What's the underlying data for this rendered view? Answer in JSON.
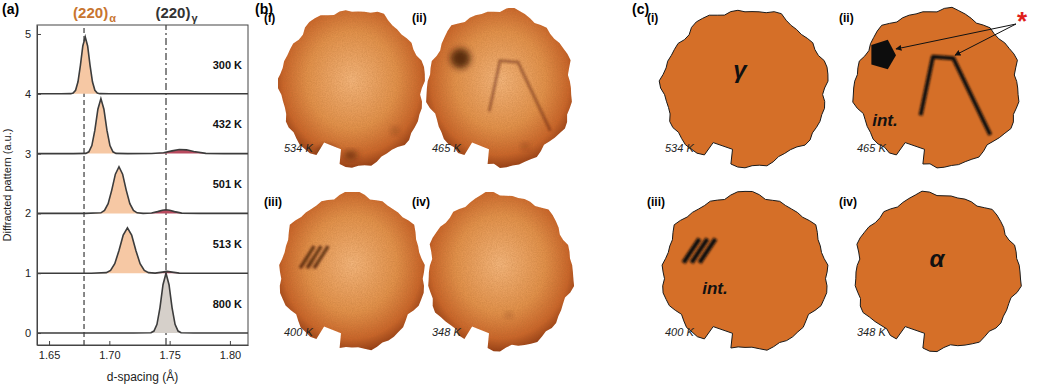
{
  "chart_data": {
    "type": "line",
    "panel_label": "(a)",
    "x_label": "d-spacing (Å)",
    "y_label": "Diffracted pattern (a.u.)",
    "xlim": [
      1.64,
      1.815
    ],
    "xticks": [
      1.65,
      {
        "value": 1.7,
        "label": "1.70"
      },
      1.75,
      {
        "value": 1.8,
        "label": "1.80"
      }
    ],
    "ylim": [
      -0.2,
      5.15
    ],
    "yticks": [
      0,
      1,
      2,
      3,
      4,
      5
    ],
    "reference_lines": [
      {
        "label": "(220)",
        "subscript": "α",
        "value": 1.679,
        "color": "#c8752f",
        "line_style": "dashed"
      },
      {
        "label": "(220)",
        "subscript": "γ",
        "value": 1.747,
        "color": "#333333",
        "line_style": "dashdot"
      }
    ],
    "series": [
      {
        "name": "300 K",
        "color": "#3c3c3c",
        "colors": [
          "#f6c8a4"
        ],
        "offset": 4,
        "x": [
          1.64,
          1.66,
          1.668,
          1.67,
          1.672,
          1.674,
          1.676,
          1.678,
          1.68,
          1.682,
          1.684,
          1.686,
          1.688,
          1.69,
          1.692,
          1.7,
          1.75,
          1.815
        ],
        "values": [
          4,
          4,
          4.002,
          4.012,
          4.059,
          4.2,
          4.475,
          4.799,
          4.95,
          4.799,
          4.475,
          4.2,
          4.059,
          4.012,
          4.002,
          4,
          4,
          4
        ]
      },
      {
        "name": "432 K",
        "color": "#3c3c3c",
        "colors": [
          "#f6c8a4",
          "#b84a5e"
        ],
        "offset": 3,
        "x": [
          1.64,
          1.67,
          1.6805,
          1.683,
          1.6855,
          1.688,
          1.6905,
          1.693,
          1.6955,
          1.698,
          1.7005,
          1.703,
          1.7055,
          1.715,
          1.735,
          1.745,
          1.752,
          1.758,
          1.764,
          1.77,
          1.78,
          1.795,
          1.815
        ],
        "values": [
          3,
          3,
          3.004,
          3.03,
          3.134,
          3.391,
          3.742,
          3.92,
          3.742,
          3.391,
          3.134,
          3.03,
          3.004,
          3,
          3.001,
          3.015,
          3.045,
          3.068,
          3.063,
          3.035,
          3.004,
          3,
          3
        ]
      },
      {
        "name": "501 K",
        "color": "#3c3c3c",
        "colors": [
          "#f6c8a4",
          "#b84a5e"
        ],
        "offset": 2,
        "x": [
          1.64,
          1.68,
          1.693,
          1.696,
          1.699,
          1.702,
          1.705,
          1.708,
          1.711,
          1.714,
          1.717,
          1.72,
          1.723,
          1.728,
          1.735,
          1.74,
          1.744,
          1.747,
          1.75,
          1.754,
          1.76,
          1.775,
          1.815
        ],
        "values": [
          2,
          2,
          2.01,
          2.049,
          2.164,
          2.39,
          2.656,
          2.78,
          2.656,
          2.39,
          2.164,
          2.049,
          2.01,
          2.001,
          2.008,
          2.03,
          2.053,
          2.06,
          2.053,
          2.03,
          2.005,
          2,
          2
        ]
      },
      {
        "name": "513 K",
        "color": "#3c3c3c",
        "colors": [
          "#f6c8a4",
          "#b84a5e"
        ],
        "offset": 1,
        "x": [
          1.64,
          1.685,
          1.6975,
          1.701,
          1.7045,
          1.708,
          1.7115,
          1.715,
          1.7185,
          1.722,
          1.7255,
          1.729,
          1.7325,
          1.738,
          1.744,
          1.748,
          1.752,
          1.758,
          1.775,
          1.815
        ],
        "values": [
          1,
          1,
          1.01,
          1.048,
          1.16,
          1.38,
          1.639,
          1.76,
          1.639,
          1.38,
          1.16,
          1.048,
          1.01,
          1.002,
          1.019,
          1.03,
          1.019,
          1.002,
          1,
          1
        ]
      },
      {
        "name": "800 K",
        "color": "#3c3c3c",
        "colors": [
          "#d6d0ca"
        ],
        "offset": 0,
        "x": [
          1.64,
          1.72,
          1.7345,
          1.737,
          1.7395,
          1.742,
          1.7445,
          1.747,
          1.7495,
          1.752,
          1.7545,
          1.757,
          1.7595,
          1.77,
          1.815
        ],
        "values": [
          0,
          0,
          0.005,
          0.033,
          0.146,
          0.425,
          0.807,
          1,
          0.807,
          0.425,
          0.146,
          0.033,
          0.005,
          0,
          0
        ]
      }
    ]
  },
  "images": {
    "panel_label": "(b)",
    "items": [
      {
        "label": "(i)",
        "temperature": "534 K"
      },
      {
        "label": "(ii)",
        "temperature": "465 K"
      },
      {
        "label": "(iii)",
        "temperature": "400 K"
      },
      {
        "label": "(iv)",
        "temperature": "348 K"
      }
    ]
  },
  "schematics": {
    "panel_label": "(c)",
    "annotation": "*",
    "items": [
      {
        "label": "(i)",
        "temperature": "534 K",
        "phase": "γ"
      },
      {
        "label": "(ii)",
        "temperature": "465 K",
        "phase": "int."
      },
      {
        "label": "(iii)",
        "temperature": "400 K",
        "phase": "int."
      },
      {
        "label": "(iv)",
        "temperature": "348 K",
        "phase": "α"
      }
    ]
  }
}
